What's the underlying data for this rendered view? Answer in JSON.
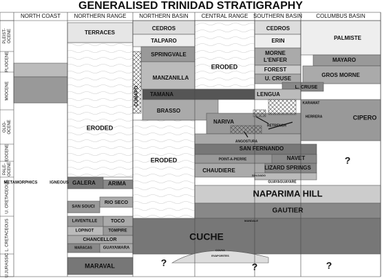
{
  "title": "GENERALISED TRINIDAD STRATIGRAPHY",
  "columns": [
    "NORTH COAST",
    "NORTHERN RANGE",
    "NORTHERN BASIN",
    "CENTRAL RANGE",
    "SOUTHERN BASIN",
    "COLUMBUS BASIN"
  ],
  "ages": [
    [
      "PLEIST-",
      "OCENE"
    ],
    [
      "PLIOCENE"
    ],
    [
      "MIOCENE"
    ],
    [
      "OLIG-",
      "OCENE"
    ],
    [
      "EOCENE"
    ],
    [
      "PALE-",
      "OCENE"
    ],
    [
      "U. CRETACEOUS"
    ],
    [
      "L. CRETACEOUS"
    ],
    [
      "U.JURASSIC"
    ]
  ],
  "units": [
    "TERRACES",
    "ERODED",
    "CEDROS",
    "TALPARO",
    "SPRINGVALE",
    "MANZANILLA",
    "CUNAPO",
    "TAMANA",
    "BRASSO",
    "ERODED",
    "ERODED",
    "CEDROS",
    "ERIN",
    "MORNE",
    "L'ENFER",
    "FOREST",
    "U. CRUSE",
    "LENGUA",
    "L. CRUSE",
    "KARAMAT",
    "HERRERA",
    "CIPERO",
    "PALMISTE",
    "MAYARO",
    "GROS MORNE",
    "NARIVA",
    "RETRENCH",
    "ANGOSTURA",
    "SAN FERNANDO",
    "POINT-A-PIERRE",
    "NAVET",
    "CHAUDIERE",
    "LIZARD SPRINGS",
    "SOLDADO",
    "GUAYAGUAYARE",
    "?",
    "METAMORPHICS",
    "IGNEOUS",
    "GALERA",
    "ARIMA",
    "NAPARIMA HILL",
    "GAUTIER",
    "SAN SOUCI",
    "RIO SECO",
    "LAVENTILLE",
    "TOCO",
    "LOPINOT",
    "TOMPIRE",
    "CHANCELLOR",
    "MARACAS",
    "GUAYAMARA",
    "MARAVAL",
    "CUCHE",
    "MANDALE",
    "COUVA",
    "EVAPORITES",
    "?",
    "?",
    "?"
  ]
}
